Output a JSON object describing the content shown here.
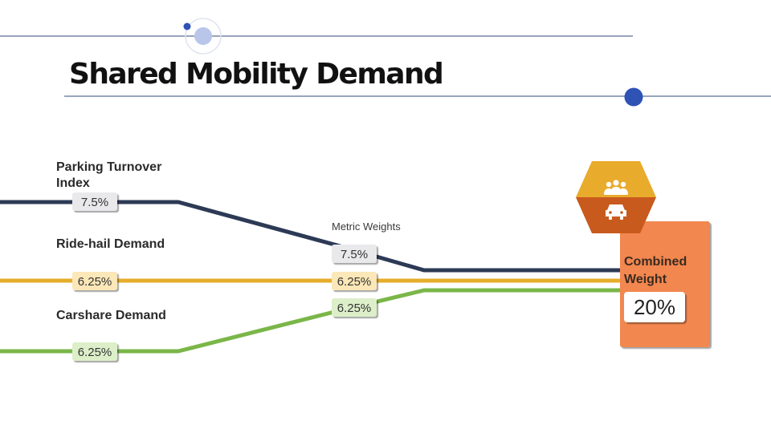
{
  "slide": {
    "title": "Shared Mobility Demand"
  },
  "diagram": {
    "metrics": [
      {
        "name_lines": [
          "Parking Turnover",
          "Index"
        ],
        "start_weight": "7.5%",
        "mid_weight": "7.5%",
        "color": "#2c3a55"
      },
      {
        "name_lines": [
          "Ride-hail Demand"
        ],
        "start_weight": "6.25%",
        "mid_weight": "6.25%",
        "color": "#e6ad2b"
      },
      {
        "name_lines": [
          "Carshare Demand"
        ],
        "start_weight": "6.25%",
        "mid_weight": "6.25%",
        "color": "#7ab648"
      }
    ],
    "mid_caption": "Metric Weights",
    "combined": {
      "label_lines": [
        "Combined",
        "Weight"
      ],
      "total": "20%",
      "box_color": "#f2874f"
    },
    "icon": {
      "top": {
        "name": "people-group-icon",
        "color": "#e9ab2c"
      },
      "bottom": {
        "name": "car-icon",
        "color": "#c85a1e"
      }
    },
    "badge_colors": {
      "neutral": "#e9e9ec",
      "yellow": "#fbe7b7",
      "green": "#dcefc9"
    },
    "accent_color": "#2f52b5"
  }
}
